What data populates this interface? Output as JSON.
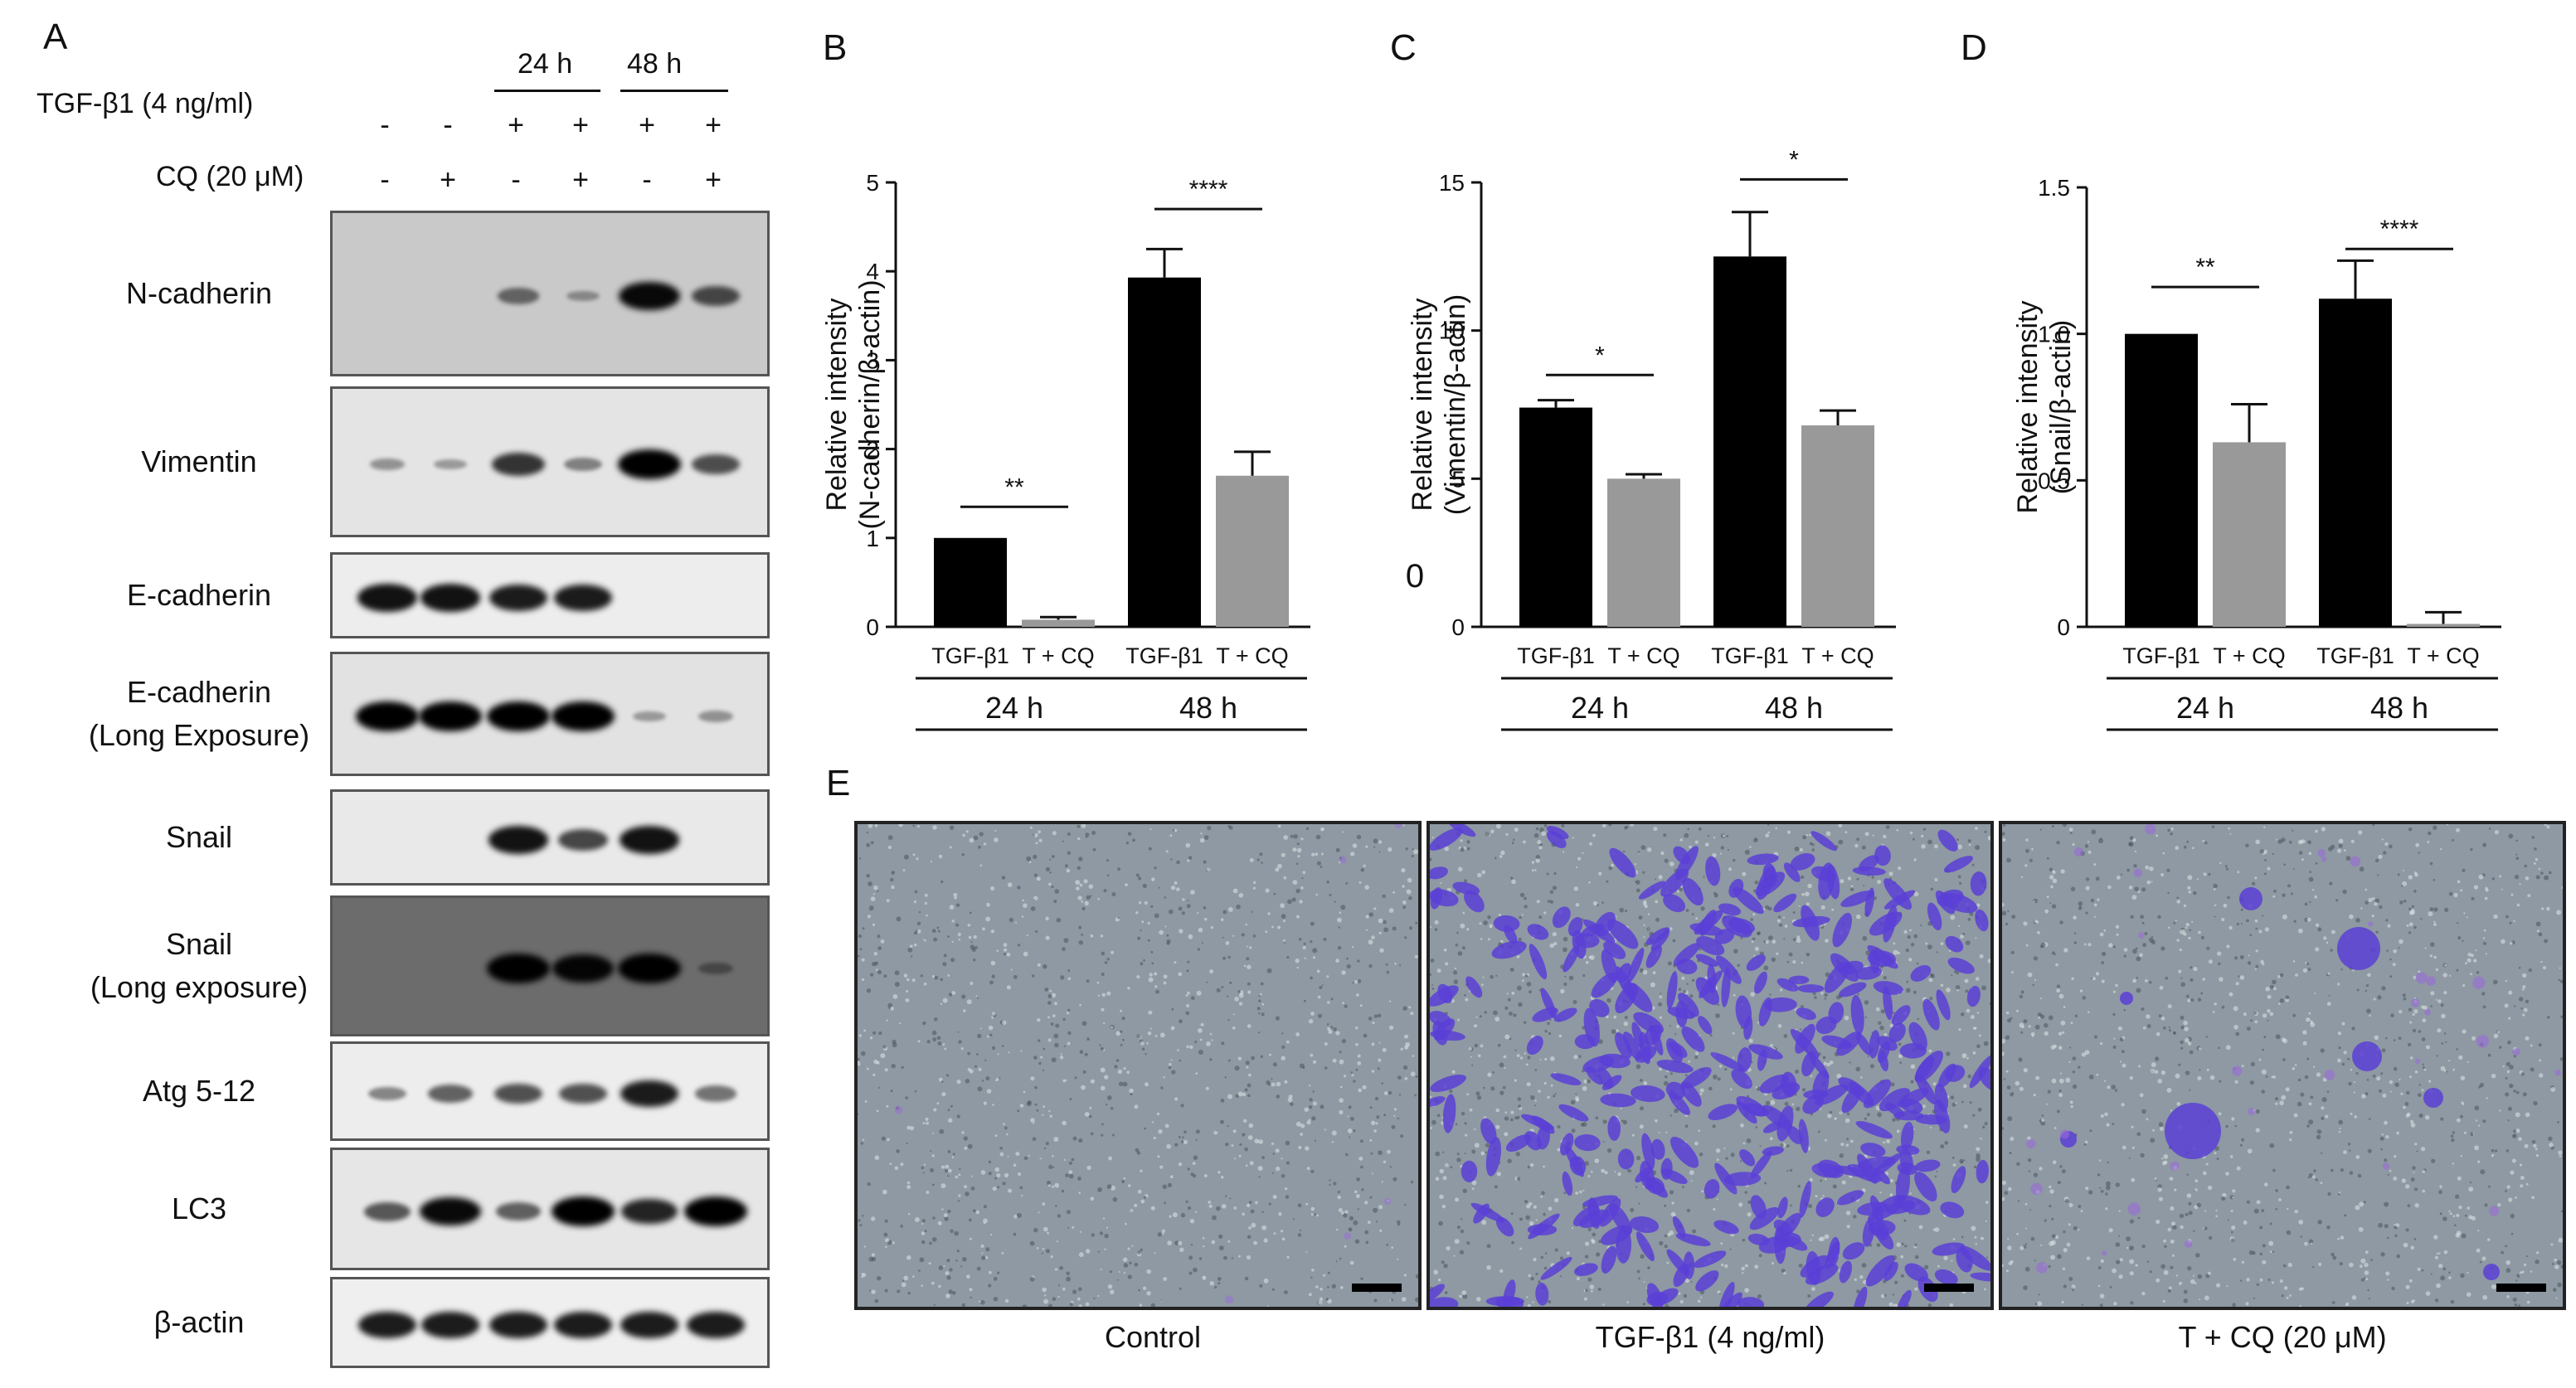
{
  "panel_a": {
    "letter": "A",
    "time_24": "24 h",
    "time_48": "48 h",
    "row1_label": "TGF-β1 (4 ng/ml)",
    "row1_signs": [
      "-",
      "-",
      "+",
      "+",
      "+",
      "+"
    ],
    "row2_label": "CQ (20 μM)",
    "row2_signs": [
      "-",
      "+",
      "-",
      "+",
      "-",
      "+"
    ],
    "blots": [
      {
        "name": "N-cadherin",
        "line2": "",
        "intensity": [
          0,
          0,
          0.35,
          0.1,
          0.95,
          0.55
        ]
      },
      {
        "name": "Vimentin",
        "line2": "",
        "intensity": [
          0.15,
          0.1,
          0.7,
          0.25,
          1.0,
          0.55
        ]
      },
      {
        "name": "E-cadherin",
        "line2": "",
        "intensity": [
          0.9,
          0.9,
          0.85,
          0.85,
          0,
          0
        ]
      },
      {
        "name": "E-cadherin",
        "line2": "(Long Exposure)",
        "intensity": [
          1.0,
          1.0,
          1.0,
          1.0,
          0.1,
          0.15
        ]
      },
      {
        "name": "Snail",
        "line2": "",
        "intensity": [
          0,
          0,
          0.9,
          0.6,
          0.9,
          0
        ]
      },
      {
        "name": "Snail",
        "line2": "(Long exposure)",
        "intensity": [
          0,
          0,
          1.0,
          0.95,
          1.0,
          0.15
        ]
      },
      {
        "name": "Atg 5-12",
        "line2": "",
        "intensity": [
          0.25,
          0.45,
          0.55,
          0.55,
          0.85,
          0.35
        ]
      },
      {
        "name": "LC3",
        "line2": "",
        "intensity": [
          0.5,
          0.95,
          0.45,
          1.0,
          0.8,
          1.0
        ]
      },
      {
        "name": "β-actin",
        "line2": "",
        "intensity": [
          0.85,
          0.85,
          0.85,
          0.85,
          0.85,
          0.85
        ]
      }
    ]
  },
  "chart_data": [
    {
      "letter": "B",
      "type": "bar",
      "ylabel_line1": "Relative intensity",
      "ylabel_line2": "(N-cadherin/β-actin)",
      "ylim": [
        0,
        5
      ],
      "yticks": [
        "0",
        "1",
        "2",
        "3",
        "4",
        "5"
      ],
      "categories": [
        "TGF-β1",
        "T + CQ",
        "TGF-β1",
        "T + CQ"
      ],
      "groups": [
        "24 h",
        "48 h"
      ],
      "values": [
        1.0,
        0.08,
        3.93,
        1.7
      ],
      "errors": [
        0,
        0.03,
        0.32,
        0.27
      ],
      "colors": [
        "#000000",
        "#999999",
        "#000000",
        "#999999"
      ],
      "significance": [
        {
          "text": "**",
          "pair": [
            0,
            1
          ],
          "y": 1.35
        },
        {
          "text": "****",
          "pair": [
            2,
            3
          ],
          "y": 4.7
        }
      ]
    },
    {
      "letter": "C",
      "type": "bar",
      "ylabel_line1": "Relative intensity",
      "ylabel_line2": "(Vimentin/β-actin)",
      "ylim": [
        0,
        15
      ],
      "yticks": [
        "0",
        "5",
        "10",
        "15"
      ],
      "extra_label": "0",
      "categories": [
        "TGF-β1",
        "T + CQ",
        "TGF-β1",
        "T + CQ"
      ],
      "groups": [
        "24 h",
        "48 h"
      ],
      "values": [
        7.4,
        5.0,
        12.5,
        6.8
      ],
      "errors": [
        0.25,
        0.15,
        1.5,
        0.5
      ],
      "colors": [
        "#000000",
        "#999999",
        "#000000",
        "#999999"
      ],
      "significance": [
        {
          "text": "*",
          "pair": [
            0,
            1
          ],
          "y": 8.5
        },
        {
          "text": "*",
          "pair": [
            2,
            3
          ],
          "y": 15.1
        }
      ]
    },
    {
      "letter": "D",
      "type": "bar",
      "ylabel_line1": "Relative intensity",
      "ylabel_line2": "(Snail/β-actin)",
      "ylim": [
        0,
        1.5
      ],
      "yticks": [
        "0",
        "0.5",
        "1.0",
        "1.5"
      ],
      "categories": [
        "TGF-β1",
        "T + CQ",
        "TGF-β1",
        "T + CQ"
      ],
      "groups": [
        "24 h",
        "48 h"
      ],
      "values": [
        1.0,
        0.63,
        1.12,
        0.01
      ],
      "errors": [
        0,
        0.13,
        0.13,
        0.04
      ],
      "colors": [
        "#000000",
        "#999999",
        "#000000",
        "#999999"
      ],
      "significance": [
        {
          "text": "**",
          "pair": [
            0,
            1
          ],
          "y": 1.16
        },
        {
          "text": "****",
          "pair": [
            2,
            3
          ],
          "y": 1.29
        }
      ]
    }
  ],
  "panel_e": {
    "letter": "E",
    "images": [
      {
        "caption": "Control",
        "density": "low"
      },
      {
        "caption": "TGF-β1 (4 ng/ml)",
        "density": "high"
      },
      {
        "caption": "T  +  CQ (20 μM)",
        "density": "sparse"
      }
    ],
    "colors": {
      "background": "#8e99a3",
      "stain": "#5a3fd6",
      "stain_light": "#9a6bd9"
    }
  }
}
